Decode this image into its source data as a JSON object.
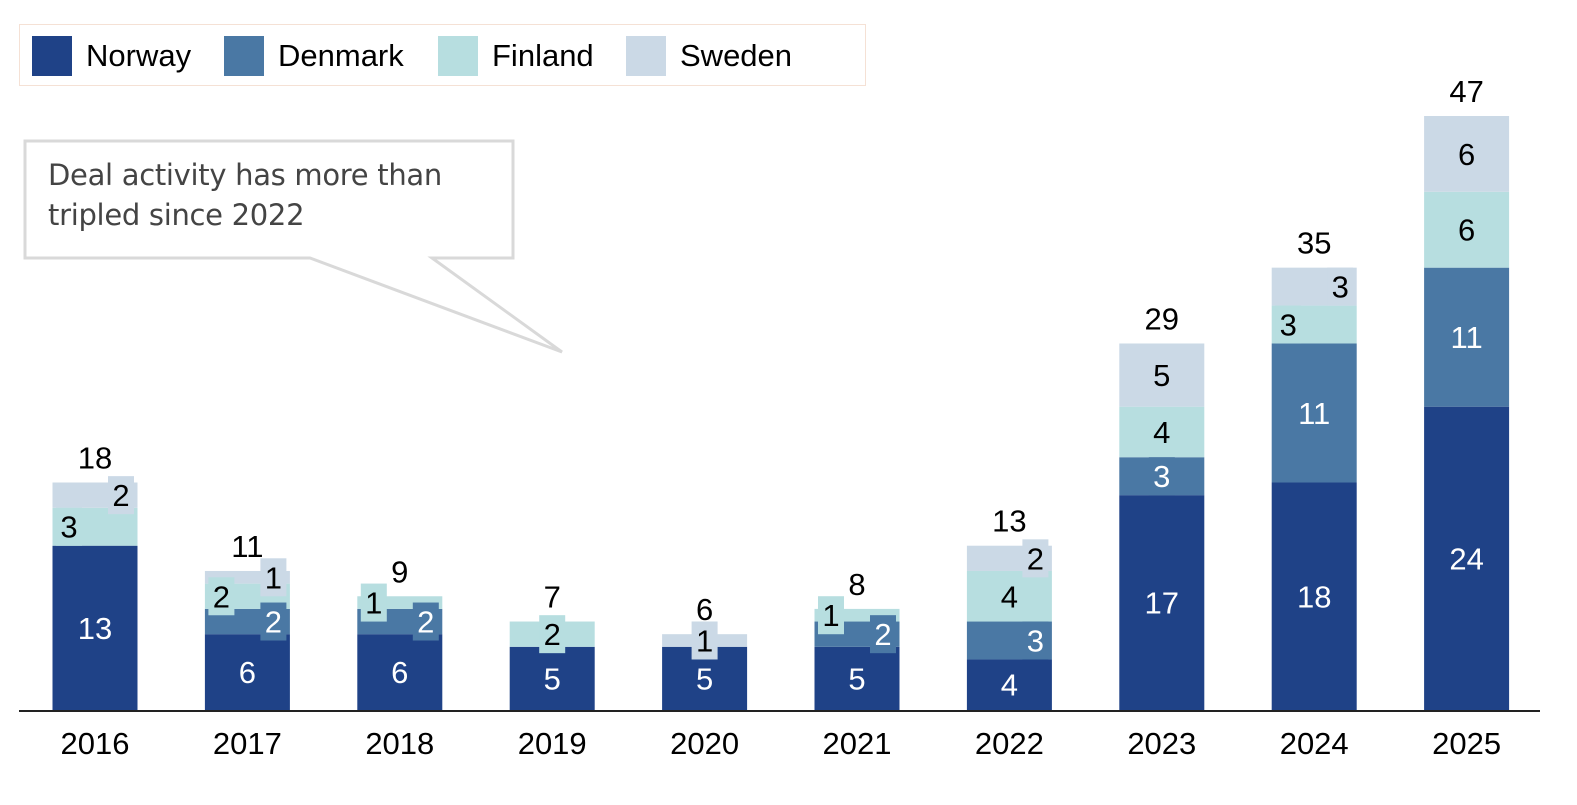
{
  "chart_data": {
    "type": "bar",
    "stacked": true,
    "title": "",
    "xlabel": "",
    "ylabel": "",
    "ylim": [
      0,
      47
    ],
    "grid": false,
    "legend_position": "top-left",
    "categories": [
      "2016",
      "2017",
      "2018",
      "2019",
      "2020",
      "2021",
      "2022",
      "2023",
      "2024",
      "2025"
    ],
    "series": [
      {
        "name": "Norway",
        "color": "#1f4287",
        "label_color": "#ffffff",
        "values": [
          13,
          6,
          6,
          5,
          5,
          5,
          4,
          17,
          18,
          24
        ]
      },
      {
        "name": "Denmark",
        "color": "#4a78a4",
        "label_color": "#ffffff",
        "values": [
          0,
          2,
          2,
          0,
          0,
          2,
          3,
          3,
          11,
          11
        ]
      },
      {
        "name": "Finland",
        "color": "#b7dee0",
        "label_color": "#000000",
        "values": [
          3,
          2,
          1,
          2,
          0,
          1,
          4,
          4,
          3,
          6
        ]
      },
      {
        "name": "Sweden",
        "color": "#cbd9e6",
        "label_color": "#000000",
        "values": [
          2,
          1,
          0,
          0,
          1,
          0,
          2,
          5,
          3,
          6
        ]
      }
    ],
    "totals": [
      18,
      11,
      9,
      7,
      6,
      8,
      13,
      29,
      35,
      47
    ],
    "annotation": {
      "text_lines": [
        "Deal activity has more than",
        "tripled since 2022"
      ],
      "points_to_category": "2019"
    }
  },
  "legend": {
    "items": [
      {
        "label": "Norway",
        "color": "#1f4287"
      },
      {
        "label": "Denmark",
        "color": "#4a78a4"
      },
      {
        "label": "Finland",
        "color": "#b7dee0"
      },
      {
        "label": "Sweden",
        "color": "#cbd9e6"
      }
    ]
  },
  "callout": {
    "line1": "Deal activity has more than",
    "line2": "tripled since 2022"
  }
}
